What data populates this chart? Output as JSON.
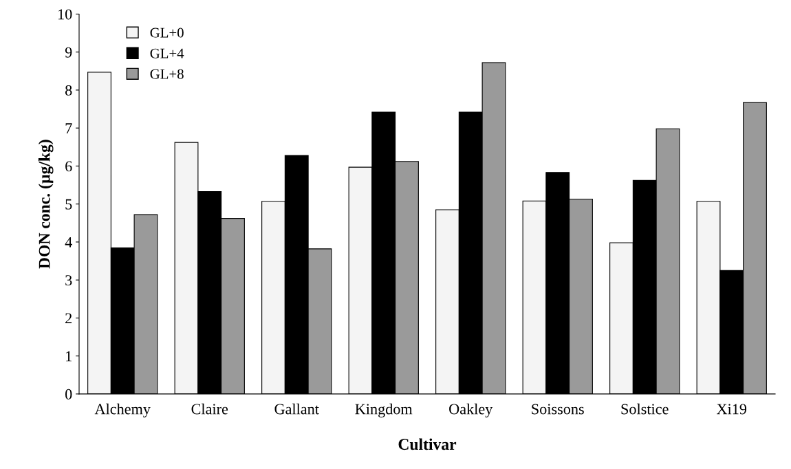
{
  "chart_data": {
    "type": "bar",
    "xlabel": "Cultivar",
    "ylabel": "DON conc. (µg/kg)",
    "categories": [
      "Alchemy",
      "Claire",
      "Gallant",
      "Kingdom",
      "Oakley",
      "Soissons",
      "Solstice",
      "Xi19"
    ],
    "series": [
      {
        "name": "GL+0",
        "color": "#f4f4f4",
        "values": [
          8.47,
          6.62,
          5.07,
          5.97,
          4.85,
          5.08,
          3.98,
          5.07
        ]
      },
      {
        "name": "GL+4",
        "color": "#000000",
        "values": [
          3.85,
          5.33,
          6.28,
          7.42,
          7.42,
          5.83,
          5.62,
          3.25
        ]
      },
      {
        "name": "GL+8",
        "color": "#9a9a9a",
        "values": [
          4.72,
          4.62,
          3.82,
          6.12,
          8.72,
          5.13,
          6.98,
          7.67
        ]
      }
    ],
    "ylim": [
      0,
      10
    ],
    "yticks": [
      0,
      1,
      2,
      3,
      4,
      5,
      6,
      7,
      8,
      9,
      10
    ],
    "grid": false,
    "legend": "top left"
  }
}
